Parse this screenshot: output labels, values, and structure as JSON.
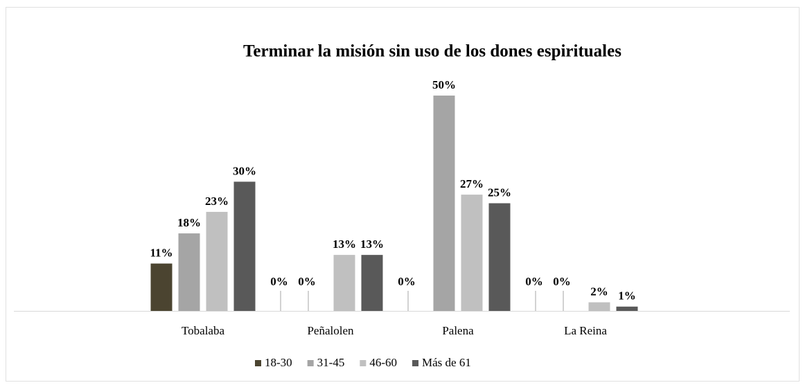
{
  "chart_data": {
    "type": "bar",
    "title": "Terminar la misión sin uso de los dones espirituales",
    "categories": [
      "Tobalaba",
      "Peñalolen",
      "Palena",
      "La Reina"
    ],
    "series": [
      {
        "name": "18-30",
        "color": "#4b4430",
        "values": [
          11,
          0,
          0,
          0
        ],
        "value_labels": [
          "11%",
          "0%",
          "0%",
          "0%"
        ]
      },
      {
        "name": "31-45",
        "color": "#a5a5a5",
        "values": [
          18,
          0,
          50,
          0
        ],
        "value_labels": [
          "18%",
          "0%",
          "50%",
          "0%"
        ]
      },
      {
        "name": "46-60",
        "color": "#c0c0c0",
        "values": [
          23,
          13,
          27,
          2
        ],
        "value_labels": [
          "23%",
          "13%",
          "27%",
          "2%"
        ]
      },
      {
        "name": "Más de 61",
        "color": "#595959",
        "values": [
          30,
          13,
          25,
          1
        ],
        "value_labels": [
          "30%",
          "13%",
          "25%",
          "1%"
        ]
      }
    ],
    "legend": "bottom"
  }
}
